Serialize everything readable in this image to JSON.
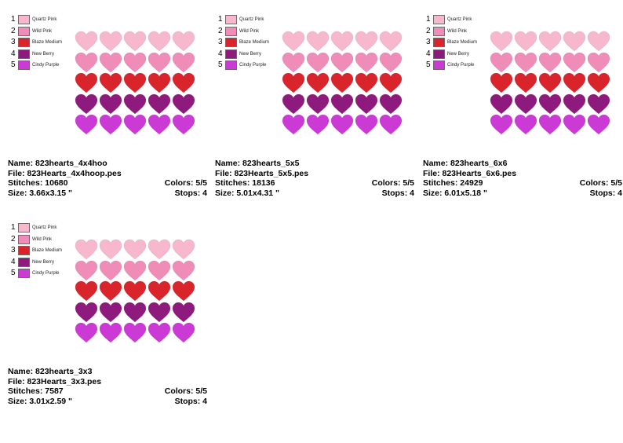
{
  "thread_colors": [
    {
      "num": "1",
      "name": "Quartz Pink",
      "color": "#f7b7cd"
    },
    {
      "num": "2",
      "name": "Wild Pink",
      "color": "#f08cb8"
    },
    {
      "num": "3",
      "name": "Blaze Medium",
      "color": "#d9242c"
    },
    {
      "num": "4",
      "name": "New Berry",
      "color": "#8e1a7d"
    },
    {
      "num": "5",
      "name": "Cindy Purple",
      "color": "#cc3ad6"
    }
  ],
  "designs": [
    {
      "name_label": "Name: 823hearts_4x4hoo",
      "file_label": "File: 823Hearts_4x4hoop.pes",
      "stitches_label": "Stitches: 10680",
      "colors_label": "Colors: 5/5",
      "size_label": "Size: 3.66x3.15 \"",
      "stops_label": "Stops: 4"
    },
    {
      "name_label": "Name: 823hearts_5x5",
      "file_label": "File: 823Hearts_5x5.pes",
      "stitches_label": "Stitches: 18136",
      "colors_label": "Colors: 5/5",
      "size_label": "Size: 5.01x4.31 \"",
      "stops_label": "Stops: 4"
    },
    {
      "name_label": "Name: 823hearts_6x6",
      "file_label": "File: 823Hearts_6x6.pes",
      "stitches_label": "Stitches: 24929",
      "colors_label": "Colors: 5/5",
      "size_label": "Size: 6.01x5.18 \"",
      "stops_label": "Stops: 4"
    },
    {
      "name_label": "Name: 823hearts_3x3",
      "file_label": "File: 823Hearts_3x3.pes",
      "stitches_label": "Stitches: 7587",
      "colors_label": "Colors: 5/5",
      "size_label": "Size: 3.01x2.59 \"",
      "stops_label": "Stops: 4"
    }
  ]
}
